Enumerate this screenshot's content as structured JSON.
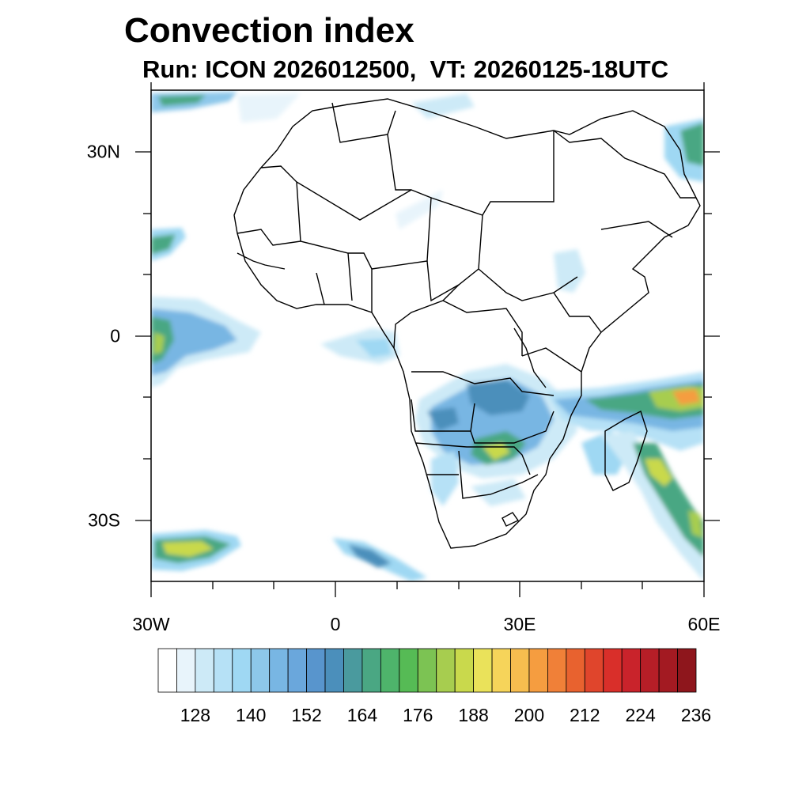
{
  "title": "Convection index",
  "subtitle": "Run: ICON 2026012500,  VT: 20260125-18UTC",
  "map": {
    "region": "Africa",
    "lon_range": [
      -30,
      60
    ],
    "lat_range": [
      -40,
      40
    ],
    "lon_ticks": [
      {
        "value": -30,
        "label": "30W"
      },
      {
        "value": 0,
        "label": "0"
      },
      {
        "value": 30,
        "label": "30E"
      },
      {
        "value": 60,
        "label": "60E"
      }
    ],
    "lat_ticks": [
      {
        "value": 30,
        "label": "30N"
      },
      {
        "value": 0,
        "label": "0"
      },
      {
        "value": -30,
        "label": "30S"
      }
    ]
  },
  "colorbar": {
    "colors": [
      "#ffffff",
      "#e8f4fb",
      "#cdeaf7",
      "#b6e1f6",
      "#9fd8f3",
      "#8dc7ea",
      "#78b6e3",
      "#6aa7dc",
      "#5895cd",
      "#4b8fbb",
      "#4a9a9e",
      "#4aa783",
      "#4eb46b",
      "#56bb55",
      "#7cc353",
      "#a7cd4f",
      "#c9d94c",
      "#eae25a",
      "#f6d45a",
      "#f7bd4f",
      "#f59d40",
      "#f08038",
      "#e8622f",
      "#e0452c",
      "#d92f2a",
      "#c9232b",
      "#b61e27",
      "#a31a22",
      "#8e161c"
    ],
    "labels": [
      "128",
      "140",
      "152",
      "164",
      "176",
      "188",
      "200",
      "212",
      "224",
      "236"
    ]
  },
  "chart_data": {
    "type": "heatmap",
    "title": "Convection index",
    "subtitle": "Run: ICON 2026012500,  VT: 20260125-18UTC",
    "x_range_deg": [
      -30,
      60
    ],
    "y_range_deg": [
      -40,
      40
    ],
    "colorbar_ticks": [
      128,
      140,
      152,
      164,
      176,
      188,
      200,
      212,
      224,
      236
    ]
  }
}
